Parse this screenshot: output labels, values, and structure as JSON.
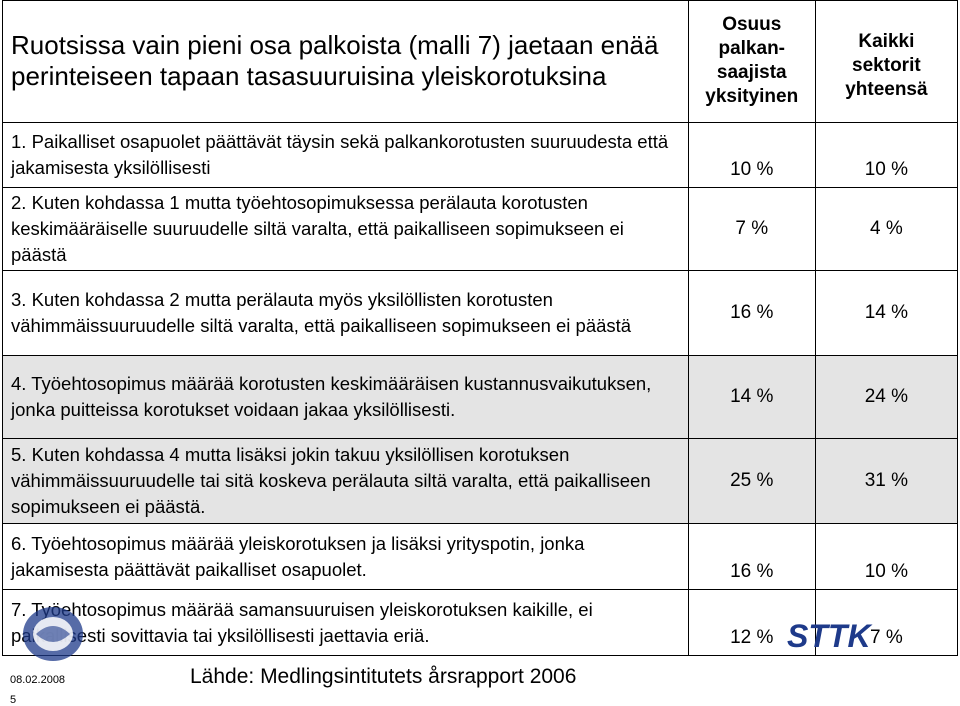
{
  "header": {
    "title": "Ruotsissa vain pieni osa palkoista (malli 7) jaetaan enää perinteiseen tapaan tasasuuruisina yleiskorotuksina",
    "col_private": "Osuus palkan-saajista yksityinen",
    "col_all": "Kaikki sektorit yhteensä"
  },
  "rows": [
    {
      "text": "1. Paikalliset osapuolet päättävät täysin sekä palkankorotusten suuruudesta että jakamisesta yksilöllisesti",
      "private": "10 %",
      "all": "10 %"
    },
    {
      "text": "2. Kuten kohdassa 1 mutta työehtosopimuksessa perälauta korotusten keskimääräiselle suuruudelle siltä varalta, että paikalliseen sopimukseen ei päästä",
      "private": "7 %",
      "all": "4 %"
    },
    {
      "text": "3. Kuten kohdassa 2 mutta perälauta myös yksilöllisten korotusten vähimmäissuuruudelle siltä varalta, että paikalliseen sopimukseen ei päästä",
      "private": "16 %",
      "all": "14 %"
    },
    {
      "text": "4. Työehtosopimus määrää korotusten keskimääräisen kustannusvaikutuksen, jonka puitteissa korotukset voidaan jakaa yksilöllisesti.",
      "private": "14 %",
      "all": "24 %"
    },
    {
      "text": "5. Kuten kohdassa 4 mutta lisäksi jokin takuu yksilöllisen korotuksen vähimmäissuuruudelle tai sitä koskeva perälauta siltä varalta, että paikalliseen sopimukseen ei päästä.",
      "private": "25 %",
      "all": "31 %"
    },
    {
      "text": "6. Työehtosopimus määrää yleiskorotuksen ja lisäksi yrityspotin, jonka jakamisesta päättävät paikalliset osapuolet.",
      "private": "16 %",
      "all": "10 %"
    },
    {
      "text": "7. Työehtosopimus määrää samansuuruisen yleiskorotuksen kaikille, ei paikallisesti sovittavia tai yksilöllisesti jaettavia eriä.",
      "private": "12 %",
      "all": "7 %"
    }
  ],
  "footer": {
    "date": "08.02.2008",
    "page": "5",
    "source": "Lähde: Medlingsintitutets årsrapport 2006"
  },
  "logos": {
    "left": "stn-logo",
    "right": "STTK"
  },
  "colors": {
    "gray_row": "#e4e4e4",
    "logo_blue": "#1e3a8a"
  }
}
